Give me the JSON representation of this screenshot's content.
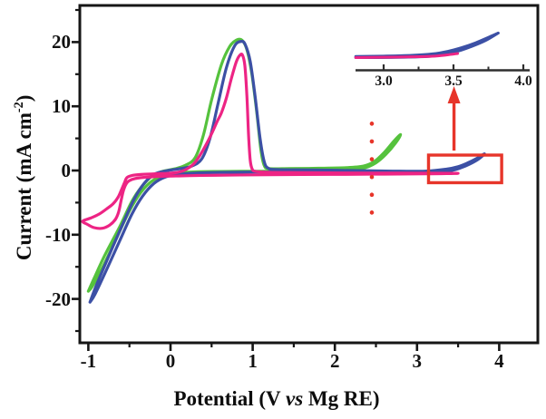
{
  "figure": {
    "background": "#ffffff",
    "description": "Cyclic voltammogram with three CV curves, an inset zoom of the 2.8-4.0 V region, a red dotted marker line, a red highlight box and a red arrow"
  },
  "axis_titles": {
    "y_pre": "Current (mA cm",
    "y_sup": "-2",
    "y_post": ")",
    "x_pre": "Potential (V ",
    "x_vs": "vs",
    "x_post": " Mg RE)"
  },
  "chart_data": {
    "type": "line",
    "title": "",
    "xlabel": "Potential (V vs Mg RE)",
    "ylabel": "Current (mA cm-2)",
    "xlim": [
      -1.1,
      4.47
    ],
    "ylim": [
      -26.8,
      25.7
    ],
    "grid": false,
    "legend": "none",
    "axis_color": "#161616",
    "x_ticks_major": [
      -1,
      0,
      1,
      2,
      3,
      4
    ],
    "x_tick_labels": [
      "-1",
      "0",
      "1",
      "2",
      "3",
      "4"
    ],
    "x_ticks_minor": [
      -0.5,
      0.5,
      1.5,
      2.5,
      3.5
    ],
    "y_ticks_major": [
      20,
      10,
      0,
      -10,
      -20
    ],
    "y_tick_labels": [
      "20",
      "10",
      "0",
      "-10",
      "-20"
    ],
    "y_ticks_minor": [
      25,
      15,
      5,
      -5,
      -15,
      -25
    ],
    "series": [
      {
        "name": "green-cv-vertex-2.8V",
        "color": "#55c23d",
        "points": [
          [
            -1.0,
            -18.8
          ],
          [
            -0.93,
            -16.8
          ],
          [
            -0.8,
            -13.2
          ],
          [
            -0.62,
            -8.8
          ],
          [
            -0.47,
            -4.8
          ],
          [
            -0.35,
            -2.5
          ],
          [
            -0.22,
            -0.8
          ],
          [
            -0.1,
            -0.15
          ],
          [
            0.05,
            0.25
          ],
          [
            0.18,
            0.8
          ],
          [
            0.3,
            2.0
          ],
          [
            0.4,
            5.5
          ],
          [
            0.5,
            11.0
          ],
          [
            0.62,
            16.5
          ],
          [
            0.72,
            19.3
          ],
          [
            0.8,
            20.3
          ],
          [
            0.87,
            20.3
          ],
          [
            0.93,
            18.8
          ],
          [
            0.99,
            15.0
          ],
          [
            1.05,
            9.0
          ],
          [
            1.1,
            3.2
          ],
          [
            1.14,
            0.8
          ],
          [
            1.2,
            0.3
          ],
          [
            1.45,
            0.3
          ],
          [
            1.8,
            0.35
          ],
          [
            2.15,
            0.45
          ],
          [
            2.35,
            0.7
          ],
          [
            2.48,
            1.4
          ],
          [
            2.6,
            2.8
          ],
          [
            2.72,
            4.6
          ],
          [
            2.8,
            5.6
          ],
          [
            2.74,
            4.3
          ],
          [
            2.62,
            2.5
          ],
          [
            2.5,
            1.2
          ],
          [
            2.36,
            0.4
          ],
          [
            2.15,
            0.05
          ],
          [
            1.8,
            -0.05
          ],
          [
            1.4,
            -0.1
          ],
          [
            1.0,
            -0.12
          ],
          [
            0.6,
            -0.15
          ],
          [
            0.3,
            -0.2
          ],
          [
            0.1,
            -0.35
          ],
          [
            -0.06,
            -0.7
          ],
          [
            -0.22,
            -1.6
          ],
          [
            -0.36,
            -3.4
          ],
          [
            -0.5,
            -6.3
          ],
          [
            -0.66,
            -10.6
          ],
          [
            -0.82,
            -14.9
          ],
          [
            -0.95,
            -18.0
          ],
          [
            -1.0,
            -18.8
          ]
        ]
      },
      {
        "name": "blue-cv-vertex-3.8V",
        "color": "#3c50a5",
        "points": [
          [
            -0.98,
            -20.5
          ],
          [
            -0.9,
            -17.8
          ],
          [
            -0.75,
            -13.3
          ],
          [
            -0.58,
            -8.3
          ],
          [
            -0.44,
            -4.4
          ],
          [
            -0.32,
            -2.0
          ],
          [
            -0.2,
            -0.6
          ],
          [
            -0.05,
            -0.05
          ],
          [
            0.1,
            0.25
          ],
          [
            0.25,
            0.65
          ],
          [
            0.38,
            1.8
          ],
          [
            0.48,
            5.0
          ],
          [
            0.58,
            10.5
          ],
          [
            0.68,
            16.0
          ],
          [
            0.78,
            19.4
          ],
          [
            0.86,
            20.1
          ],
          [
            0.91,
            19.6
          ],
          [
            0.97,
            17.0
          ],
          [
            1.03,
            11.5
          ],
          [
            1.09,
            5.0
          ],
          [
            1.14,
            1.4
          ],
          [
            1.19,
            0.35
          ],
          [
            1.3,
            0.15
          ],
          [
            1.7,
            0.1
          ],
          [
            2.2,
            0.0
          ],
          [
            2.7,
            -0.1
          ],
          [
            3.1,
            -0.1
          ],
          [
            3.35,
            0.2
          ],
          [
            3.5,
            0.6
          ],
          [
            3.62,
            1.2
          ],
          [
            3.73,
            1.9
          ],
          [
            3.82,
            2.6
          ],
          [
            3.75,
            1.8
          ],
          [
            3.64,
            1.0
          ],
          [
            3.53,
            0.4
          ],
          [
            3.42,
            0.0
          ],
          [
            3.25,
            -0.2
          ],
          [
            3.0,
            -0.3
          ],
          [
            2.6,
            -0.3
          ],
          [
            2.2,
            -0.28
          ],
          [
            1.8,
            -0.25
          ],
          [
            1.4,
            -0.22
          ],
          [
            1.0,
            -0.25
          ],
          [
            0.6,
            -0.3
          ],
          [
            0.3,
            -0.4
          ],
          [
            0.1,
            -0.6
          ],
          [
            -0.06,
            -1.0
          ],
          [
            -0.2,
            -2.0
          ],
          [
            -0.34,
            -4.0
          ],
          [
            -0.47,
            -6.8
          ],
          [
            -0.62,
            -11.0
          ],
          [
            -0.78,
            -15.5
          ],
          [
            -0.92,
            -19.3
          ],
          [
            -0.98,
            -20.5
          ]
        ]
      },
      {
        "name": "pink-cv-vertex-3.5V",
        "color": "#ed2484",
        "points": [
          [
            0.1,
            -0.85
          ],
          [
            -0.08,
            -0.9
          ],
          [
            -0.24,
            -1.0
          ],
          [
            -0.38,
            -1.15
          ],
          [
            -0.47,
            -1.4
          ],
          [
            -0.53,
            -1.9
          ],
          [
            -0.57,
            -3.0
          ],
          [
            -0.6,
            -4.6
          ],
          [
            -0.63,
            -6.4
          ],
          [
            -0.67,
            -7.6
          ],
          [
            -0.74,
            -8.5
          ],
          [
            -0.83,
            -9.0
          ],
          [
            -0.93,
            -8.9
          ],
          [
            -1.01,
            -8.4
          ],
          [
            -1.07,
            -7.9
          ],
          [
            -0.97,
            -7.4
          ],
          [
            -0.87,
            -6.8
          ],
          [
            -0.78,
            -6.0
          ],
          [
            -0.7,
            -5.2
          ],
          [
            -0.64,
            -4.2
          ],
          [
            -0.6,
            -3.1
          ],
          [
            -0.56,
            -1.9
          ],
          [
            -0.53,
            -1.1
          ],
          [
            -0.46,
            -0.75
          ],
          [
            -0.34,
            -0.6
          ],
          [
            -0.18,
            -0.5
          ],
          [
            -0.04,
            -0.45
          ],
          [
            0.08,
            -0.3
          ],
          [
            0.18,
            0.1
          ],
          [
            0.28,
            1.0
          ],
          [
            0.36,
            2.4
          ],
          [
            0.44,
            4.2
          ],
          [
            0.51,
            6.0
          ],
          [
            0.57,
            7.7
          ],
          [
            0.62,
            9.0
          ],
          [
            0.68,
            11.3
          ],
          [
            0.74,
            14.3
          ],
          [
            0.8,
            16.9
          ],
          [
            0.84,
            17.9
          ],
          [
            0.875,
            18.0
          ],
          [
            0.905,
            16.3
          ],
          [
            0.93,
            11.5
          ],
          [
            0.95,
            5.5
          ],
          [
            0.97,
            1.6
          ],
          [
            0.995,
            0.2
          ],
          [
            1.04,
            -0.15
          ],
          [
            1.2,
            -0.28
          ],
          [
            1.6,
            -0.33
          ],
          [
            2.1,
            -0.38
          ],
          [
            2.6,
            -0.4
          ],
          [
            3.1,
            -0.42
          ],
          [
            3.5,
            -0.45
          ],
          [
            3.1,
            -0.52
          ],
          [
            2.6,
            -0.56
          ],
          [
            2.1,
            -0.6
          ],
          [
            1.6,
            -0.63
          ],
          [
            1.2,
            -0.66
          ],
          [
            0.85,
            -0.7
          ],
          [
            0.55,
            -0.74
          ],
          [
            0.32,
            -0.78
          ],
          [
            0.1,
            -0.85
          ]
        ]
      }
    ],
    "inset": {
      "xlim": [
        2.8,
        4.05
      ],
      "axis_color": "#2e2e2e",
      "x_ticks_major": [
        3.0,
        3.5,
        4.0
      ],
      "x_tick_labels": [
        "3.0",
        "3.5",
        "4.0"
      ],
      "x_ticks_minor": [
        3.25,
        3.75
      ],
      "series": [
        {
          "name": "inset-blue-forward",
          "color": "#3c50a5",
          "points": [
            [
              2.8,
              0.15
            ],
            [
              3.0,
              0.2
            ],
            [
              3.2,
              0.3
            ],
            [
              3.35,
              0.5
            ],
            [
              3.46,
              0.85
            ],
            [
              3.56,
              1.35
            ],
            [
              3.66,
              2.0
            ],
            [
              3.76,
              2.8
            ],
            [
              3.82,
              3.3
            ]
          ]
        },
        {
          "name": "inset-blue-return",
          "color": "#3c50a5",
          "points": [
            [
              3.82,
              3.3
            ],
            [
              3.73,
              2.3
            ],
            [
              3.63,
              1.5
            ],
            [
              3.53,
              0.85
            ],
            [
              3.43,
              0.4
            ],
            [
              3.32,
              0.15
            ],
            [
              3.15,
              0.05
            ],
            [
              2.95,
              0.0
            ],
            [
              2.8,
              0.0
            ]
          ]
        },
        {
          "name": "inset-magenta",
          "color": "#ed2484",
          "points": [
            [
              2.8,
              0.0
            ],
            [
              3.0,
              0.05
            ],
            [
              3.2,
              0.1
            ],
            [
              3.35,
              0.18
            ],
            [
              3.45,
              0.35
            ],
            [
              3.53,
              0.55
            ]
          ]
        }
      ]
    },
    "annotations": {
      "color": "#e7352a",
      "dotted_line": {
        "x": 2.45,
        "y_top": 7.3,
        "y_bottom": -7.2
      },
      "highlight_box": {
        "x1": 3.14,
        "x2": 4.03,
        "y1": 2.4,
        "y2": -1.9
      },
      "arrow": {
        "x": 3.45,
        "points_to": "inset"
      }
    }
  }
}
